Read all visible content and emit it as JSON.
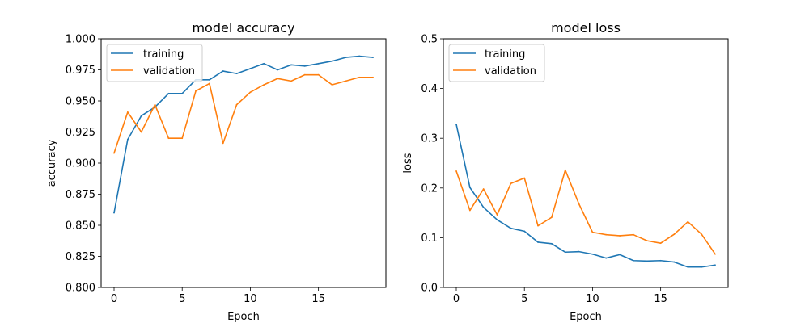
{
  "chart_data": [
    {
      "type": "line",
      "title": "model accuracy",
      "xlabel": "Epoch",
      "ylabel": "accuracy",
      "xlim": [
        -0.95,
        19.95
      ],
      "ylim": [
        0.8,
        1.0
      ],
      "x_ticks": [
        0,
        5,
        10,
        15
      ],
      "y_ticks": [
        0.8,
        0.825,
        0.85,
        0.875,
        0.9,
        0.925,
        0.95,
        0.975,
        1.0
      ],
      "x_tick_labels": [
        "0",
        "5",
        "10",
        "15"
      ],
      "y_tick_labels": [
        "0.800",
        "0.825",
        "0.850",
        "0.875",
        "0.900",
        "0.925",
        "0.950",
        "0.975",
        "1.000"
      ],
      "legend_position": "upper-left",
      "grid": false,
      "x": [
        0,
        1,
        2,
        3,
        4,
        5,
        6,
        7,
        8,
        9,
        10,
        11,
        12,
        13,
        14,
        15,
        16,
        17,
        18,
        19
      ],
      "series": [
        {
          "name": "training",
          "color": "#1f77b4",
          "values": [
            0.86,
            0.919,
            0.938,
            0.945,
            0.956,
            0.956,
            0.967,
            0.967,
            0.974,
            0.972,
            0.976,
            0.98,
            0.975,
            0.979,
            0.978,
            0.98,
            0.982,
            0.985,
            0.986,
            0.985
          ]
        },
        {
          "name": "validation",
          "color": "#ff7f0e",
          "values": [
            0.908,
            0.941,
            0.925,
            0.947,
            0.92,
            0.92,
            0.958,
            0.964,
            0.916,
            0.947,
            0.957,
            0.963,
            0.968,
            0.966,
            0.971,
            0.971,
            0.963,
            0.966,
            0.969,
            0.969
          ]
        }
      ]
    },
    {
      "type": "line",
      "title": "model loss",
      "xlabel": "Epoch",
      "ylabel": "loss",
      "xlim": [
        -0.95,
        19.95
      ],
      "ylim": [
        0.0,
        0.5
      ],
      "x_ticks": [
        0,
        5,
        10,
        15
      ],
      "y_ticks": [
        0.0,
        0.1,
        0.2,
        0.3,
        0.4,
        0.5
      ],
      "x_tick_labels": [
        "0",
        "5",
        "10",
        "15"
      ],
      "y_tick_labels": [
        "0.0",
        "0.1",
        "0.2",
        "0.3",
        "0.4",
        "0.5"
      ],
      "legend_position": "upper-left",
      "grid": false,
      "x": [
        0,
        1,
        2,
        3,
        4,
        5,
        6,
        7,
        8,
        9,
        10,
        11,
        12,
        13,
        14,
        15,
        16,
        17,
        18,
        19
      ],
      "series": [
        {
          "name": "training",
          "color": "#1f77b4",
          "values": [
            0.328,
            0.201,
            0.161,
            0.136,
            0.119,
            0.113,
            0.091,
            0.088,
            0.071,
            0.072,
            0.067,
            0.059,
            0.066,
            0.054,
            0.053,
            0.054,
            0.051,
            0.041,
            0.041,
            0.045
          ]
        },
        {
          "name": "validation",
          "color": "#ff7f0e",
          "values": [
            0.234,
            0.155,
            0.198,
            0.146,
            0.209,
            0.22,
            0.124,
            0.141,
            0.236,
            0.168,
            0.111,
            0.106,
            0.104,
            0.106,
            0.094,
            0.089,
            0.107,
            0.132,
            0.107,
            0.067
          ]
        }
      ]
    }
  ]
}
